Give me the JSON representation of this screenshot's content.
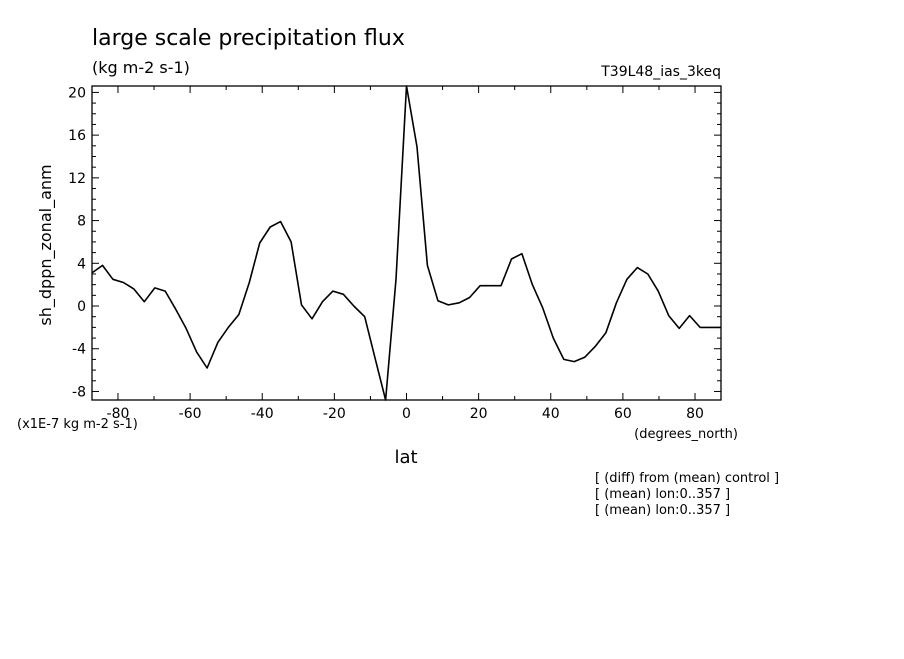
{
  "header": {
    "title": "large scale precipitation flux",
    "units": "(kg m-2 s-1)",
    "run_id": "T39L48_ias_3keq"
  },
  "notes": [
    "[ (diff) from (mean) control ]",
    "[ (mean) lon:0..357 ]",
    "[ (mean) lon:0..357 ]"
  ],
  "chart_data": {
    "type": "line",
    "title": "large scale precipitation flux",
    "subtitle": "(kg m-2 s-1)",
    "xlabel": "lat",
    "x_units": "(degrees_north)",
    "ylabel": "sh_dppn_zonal_anm",
    "y_scale_note": "(x1E-7 kg m-2 s-1)",
    "xlim": [
      -87.2,
      87.2
    ],
    "ylim": [
      -8.8,
      20.6
    ],
    "x_ticks": [
      -80,
      -60,
      -40,
      -20,
      0,
      20,
      40,
      60,
      80
    ],
    "y_ticks": [
      -8,
      -4,
      0,
      4,
      8,
      12,
      16,
      20
    ],
    "grid": false,
    "series": [
      {
        "x": [
          -87.2,
          -84.3,
          -81.4,
          -78.5,
          -75.6,
          -72.7,
          -69.8,
          -66.9,
          -64.0,
          -61.1,
          -58.2,
          -55.3,
          -52.3,
          -49.4,
          -46.5,
          -43.6,
          -40.7,
          -37.8,
          -34.9,
          -32.0,
          -29.1,
          -26.2,
          -23.3,
          -20.4,
          -17.5,
          -14.6,
          -11.6,
          -8.7,
          -5.8,
          -2.9,
          0.0,
          2.9,
          5.8,
          8.7,
          11.6,
          14.6,
          17.5,
          20.4,
          23.3,
          26.2,
          29.1,
          32.0,
          34.9,
          37.8,
          40.7,
          43.6,
          46.5,
          49.4,
          52.3,
          55.3,
          58.2,
          61.1,
          64.0,
          66.9,
          69.8,
          72.7,
          75.6,
          78.5,
          81.4,
          84.3,
          87.2
        ],
        "y": [
          3.1,
          3.8,
          2.5,
          2.2,
          1.6,
          0.4,
          1.7,
          1.4,
          -0.3,
          -2.1,
          -4.3,
          -5.8,
          -3.4,
          -2.0,
          -0.8,
          2.2,
          5.9,
          7.4,
          7.9,
          6.0,
          0.1,
          -1.2,
          0.4,
          1.4,
          1.1,
          0.0,
          -1.0,
          -4.9,
          -8.8,
          2.5,
          20.6,
          14.9,
          3.8,
          0.5,
          0.1,
          0.3,
          0.8,
          1.9,
          1.9,
          1.9,
          4.4,
          4.9,
          2.0,
          -0.2,
          -3.0,
          -5.0,
          -5.2,
          -4.8,
          -3.8,
          -2.5,
          0.3,
          2.5,
          3.6,
          3.0,
          1.4,
          -0.9,
          -2.1,
          -0.9,
          -2.0,
          -2.0,
          -2.0
        ]
      }
    ]
  }
}
